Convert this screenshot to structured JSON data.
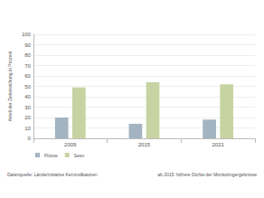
{
  "chart_data": {
    "type": "bar",
    "y_label": "Anteil der Zielerreichung in Prozent",
    "categories": [
      "2009",
      "2015",
      "2021"
    ],
    "series": [
      {
        "name": "Flüsse",
        "color": "#a3b3c1",
        "values": [
          20,
          14,
          18
        ]
      },
      {
        "name": "Seen",
        "color": "#c8d3a3",
        "values": [
          49,
          54,
          52
        ]
      }
    ],
    "ylim": [
      0,
      100
    ],
    "yticks": [
      0,
      10,
      20,
      30,
      40,
      50,
      60,
      70,
      80,
      90,
      100
    ],
    "grid": true,
    "legend": "lower left",
    "annotations": [
      "Datenquelle: Länderinitiative Kernindikatoren",
      "ab 2015: höhere Dichte der Monitoringergebnisse"
    ]
  }
}
